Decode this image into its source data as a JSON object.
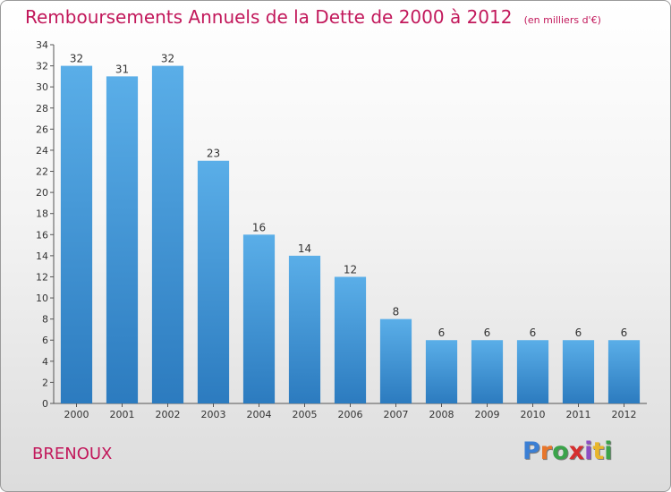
{
  "chart_data": {
    "type": "bar",
    "title": "Remboursements Annuels de la Dette de 2000 à 2012",
    "unit": "(en milliers d'€)",
    "categories": [
      "2000",
      "2001",
      "2002",
      "2003",
      "2004",
      "2005",
      "2006",
      "2007",
      "2008",
      "2009",
      "2010",
      "2011",
      "2012"
    ],
    "values": [
      32,
      31,
      32,
      23,
      16,
      14,
      12,
      8,
      6,
      6,
      6,
      6,
      6
    ],
    "ylim": [
      0,
      34
    ],
    "yticks": [
      0,
      2,
      4,
      6,
      8,
      10,
      12,
      14,
      16,
      18,
      20,
      22,
      24,
      26,
      28,
      30,
      32,
      34
    ],
    "grid": false,
    "bar_color_top": "#5aaee8",
    "bar_color_bottom": "#2c7bbf"
  },
  "footer": {
    "commune": "BRENOUX",
    "logo_letters": [
      "P",
      "r",
      "o",
      "x",
      "i",
      "t",
      "i"
    ],
    "logo_colors": [
      "#3b7fd4",
      "#e8762b",
      "#3ba34a",
      "#d62f2f",
      "#8d4fc4",
      "#e8b62b",
      "#3ba34a"
    ]
  }
}
